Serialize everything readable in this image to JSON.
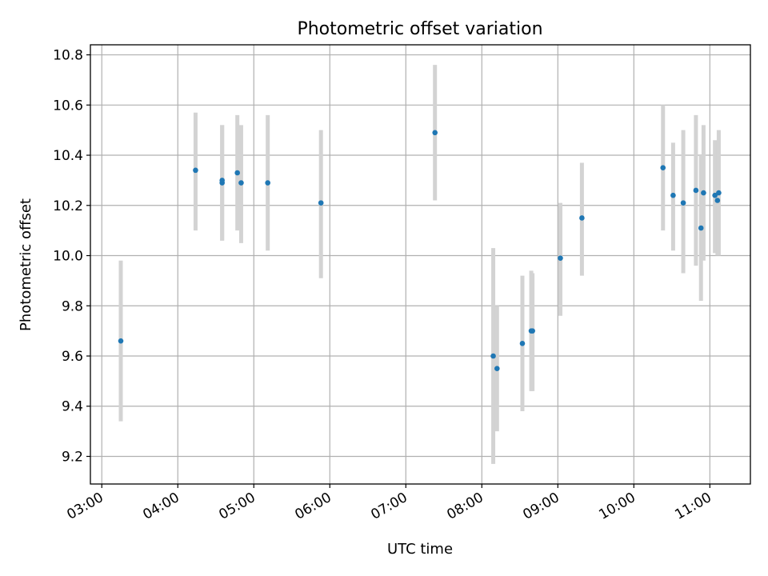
{
  "chart_data": {
    "type": "scatter",
    "title": "Photometric offset variation",
    "xlabel": "UTC time",
    "ylabel": "Photometric offset",
    "x_ticks": [
      "03:00",
      "04:00",
      "05:00",
      "06:00",
      "07:00",
      "08:00",
      "09:00",
      "10:00",
      "11:00"
    ],
    "y_ticks": [
      "9.2",
      "9.4",
      "9.6",
      "9.8",
      "10.0",
      "10.2",
      "10.4",
      "10.6",
      "10.8"
    ],
    "xlim": [
      "02:51",
      "11:32"
    ],
    "ylim": [
      9.09,
      10.84
    ],
    "grid": true,
    "colors": {
      "marker": "#1f77b4",
      "errorbar": "#d3d3d3",
      "grid": "#b0b0b0"
    },
    "points": [
      {
        "t": "03:15",
        "y": 9.66,
        "lo": 9.34,
        "hi": 9.98
      },
      {
        "t": "04:14",
        "y": 10.34,
        "lo": 10.1,
        "hi": 10.57
      },
      {
        "t": "04:35",
        "y": 10.29,
        "lo": 10.06,
        "hi": 10.52
      },
      {
        "t": "04:35",
        "y": 10.3,
        "lo": 10.06,
        "hi": 10.52
      },
      {
        "t": "04:47",
        "y": 10.33,
        "lo": 10.1,
        "hi": 10.56
      },
      {
        "t": "04:50",
        "y": 10.29,
        "lo": 10.05,
        "hi": 10.52
      },
      {
        "t": "05:11",
        "y": 10.29,
        "lo": 10.02,
        "hi": 10.56
      },
      {
        "t": "05:53",
        "y": 10.21,
        "lo": 9.91,
        "hi": 10.5
      },
      {
        "t": "07:23",
        "y": 10.49,
        "lo": 10.22,
        "hi": 10.76
      },
      {
        "t": "08:09",
        "y": 9.6,
        "lo": 9.17,
        "hi": 10.03
      },
      {
        "t": "08:12",
        "y": 9.55,
        "lo": 9.3,
        "hi": 9.8
      },
      {
        "t": "08:32",
        "y": 9.65,
        "lo": 9.38,
        "hi": 9.92
      },
      {
        "t": "08:39",
        "y": 9.7,
        "lo": 9.46,
        "hi": 9.94
      },
      {
        "t": "08:40",
        "y": 9.7,
        "lo": 9.46,
        "hi": 9.93
      },
      {
        "t": "09:02",
        "y": 9.99,
        "lo": 9.76,
        "hi": 10.21
      },
      {
        "t": "09:19",
        "y": 10.15,
        "lo": 9.92,
        "hi": 10.37
      },
      {
        "t": "10:23",
        "y": 10.35,
        "lo": 10.1,
        "hi": 10.6
      },
      {
        "t": "10:31",
        "y": 10.24,
        "lo": 10.02,
        "hi": 10.45
      },
      {
        "t": "10:39",
        "y": 10.21,
        "lo": 9.93,
        "hi": 10.5
      },
      {
        "t": "10:49",
        "y": 10.26,
        "lo": 9.96,
        "hi": 10.56
      },
      {
        "t": "10:53",
        "y": 10.11,
        "lo": 9.82,
        "hi": 10.4
      },
      {
        "t": "10:55",
        "y": 10.25,
        "lo": 9.98,
        "hi": 10.52
      },
      {
        "t": "11:04",
        "y": 10.24,
        "lo": 10.01,
        "hi": 10.46
      },
      {
        "t": "11:06",
        "y": 10.22,
        "lo": 10.0,
        "hi": 10.44
      },
      {
        "t": "11:07",
        "y": 10.25,
        "lo": 10.0,
        "hi": 10.5
      }
    ]
  }
}
